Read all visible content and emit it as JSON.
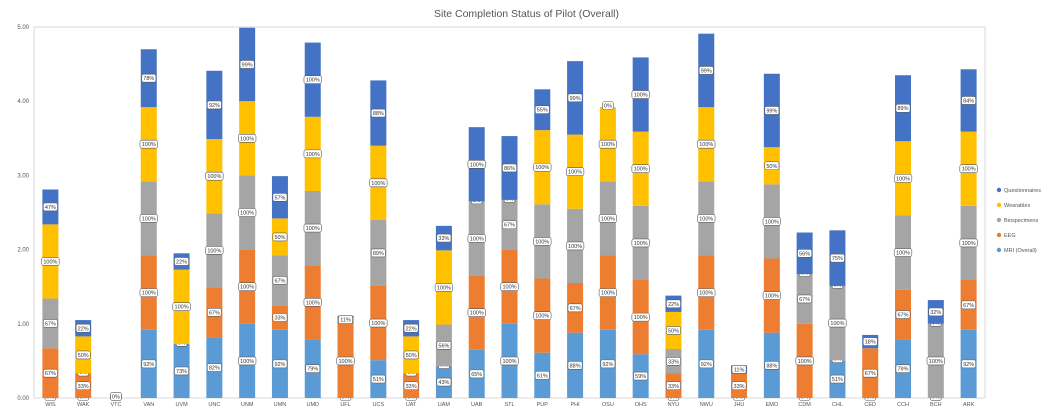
{
  "chart_data": {
    "type": "bar",
    "stacked": true,
    "title": "Site Completion Status of Pilot (Overall)",
    "xlabel": "",
    "ylabel": "",
    "ylim": [
      0,
      5
    ],
    "yticks": [
      "0.00",
      "1.00",
      "2.00",
      "3.00",
      "4.00",
      "5.00"
    ],
    "grid": false,
    "legend_position": "right",
    "categories": [
      "WIS",
      "WAK",
      "VTC",
      "VAN",
      "UVM",
      "UNC",
      "UNM",
      "UMN",
      "UMD",
      "UFL",
      "UCS",
      "UAT",
      "UAM",
      "UAB",
      "STL",
      "PUP",
      "PHI",
      "OSU",
      "OHS",
      "NYU",
      "NWU",
      "JHU",
      "EMO",
      "CDM",
      "CHL",
      "CED",
      "CCH",
      "BCH",
      "ARK"
    ],
    "series": [
      {
        "name": "MRI (Overall)",
        "color": "#5B9BD5",
        "values": [
          0,
          0,
          0,
          0.92,
          0.73,
          0.82,
          1.0,
          0.92,
          0.79,
          0,
          0.51,
          0,
          0.43,
          0.65,
          1.0,
          0.61,
          0.88,
          0.92,
          0.59,
          0,
          0.92,
          0,
          0.88,
          0,
          0.51,
          0,
          0.79,
          0,
          0.92
        ],
        "labels": [
          "0%",
          "0%",
          "0%",
          "92%",
          "73%",
          "82%",
          "100%",
          "92%",
          "79%",
          "0%",
          "51%",
          "0%",
          "43%",
          "65%",
          "100%",
          "61%",
          "88%",
          "92%",
          "59%",
          "0%",
          "92%",
          "0%",
          "88%",
          "0%",
          "51%",
          "0%",
          "79%",
          "0%",
          "92%"
        ]
      },
      {
        "name": "EEG",
        "color": "#ED7D31",
        "values": [
          0.67,
          0.33,
          0,
          1.0,
          0,
          0.67,
          1.0,
          0.33,
          1.0,
          1.0,
          1.0,
          0.33,
          0,
          1.0,
          1.0,
          1.0,
          0.67,
          1.0,
          1.0,
          0.33,
          1.0,
          0.33,
          1.0,
          1.0,
          0,
          0.67,
          0.67,
          0,
          0.67
        ],
        "labels": [
          "67%",
          "33%",
          "",
          "100%",
          "0%",
          "67%",
          "100%",
          "33%",
          "100%",
          "100%",
          "100%",
          "33%",
          "0%",
          "100%",
          "100%",
          "100%",
          "67%",
          "100%",
          "100%",
          "33%",
          "100%",
          "33%",
          "100%",
          "100%",
          "0%",
          "67%",
          "67%",
          "0%",
          "67%"
        ]
      },
      {
        "name": "Biospecimens",
        "color": "#A5A5A5",
        "values": [
          0.67,
          0,
          0,
          1.0,
          0,
          1.0,
          1.0,
          0.67,
          1.0,
          0,
          0.89,
          0,
          0.56,
          1.0,
          0.67,
          1.0,
          1.0,
          1.0,
          1.0,
          0.33,
          1.0,
          0,
          1.0,
          0.67,
          1.0,
          0,
          1.0,
          1.0,
          1.0
        ],
        "labels": [
          "67%",
          "0%",
          "",
          "100%",
          "0%",
          "100%",
          "100%",
          "67%",
          "100%",
          "",
          "89%",
          "0%",
          "56%",
          "100%",
          "67%",
          "100%",
          "100%",
          "100%",
          "100%",
          "33%",
          "100%",
          "",
          "100%",
          "67%",
          "100%",
          "",
          "100%",
          "100%",
          "100%"
        ]
      },
      {
        "name": "Wearables",
        "color": "#FFC000",
        "values": [
          1.0,
          0.5,
          0,
          1.0,
          1.0,
          1.0,
          1.0,
          0.5,
          1.0,
          0,
          1.0,
          0.5,
          1.0,
          0,
          0,
          1.0,
          1.0,
          1.0,
          1.0,
          0.5,
          1.0,
          0,
          0.5,
          0,
          0,
          0,
          1.0,
          0,
          1.0
        ],
        "labels": [
          "100%",
          "50%",
          "",
          "100%",
          "100%",
          "100%",
          "100%",
          "50%",
          "100%",
          "",
          "100%",
          "50%",
          "100%",
          "0%",
          "0%",
          "100%",
          "100%",
          "100%",
          "100%",
          "50%",
          "100%",
          "",
          "50%",
          "0%",
          "0%",
          "",
          "100%",
          "0%",
          "100%"
        ]
      },
      {
        "name": "Questionnaires",
        "color": "#4472C4",
        "values": [
          0.47,
          0.22,
          0,
          0.78,
          0.22,
          0.92,
          0.99,
          0.57,
          1.0,
          0.11,
          0.88,
          0.22,
          0.33,
          1.0,
          0.86,
          0.55,
          0.99,
          0,
          1.0,
          0.22,
          0.99,
          0.11,
          0.99,
          0.56,
          0.75,
          0.18,
          0.89,
          0.32,
          0.84
        ],
        "labels": [
          "47%",
          "22%",
          "0%",
          "78%",
          "22%",
          "92%",
          "99%",
          "57%",
          "100%",
          "11%",
          "88%",
          "22%",
          "33%",
          "100%",
          "86%",
          "55%",
          "99%",
          "0%",
          "100%",
          "22%",
          "99%",
          "11%",
          "99%",
          "56%",
          "75%",
          "18%",
          "89%",
          "32%",
          "84%"
        ]
      }
    ]
  }
}
